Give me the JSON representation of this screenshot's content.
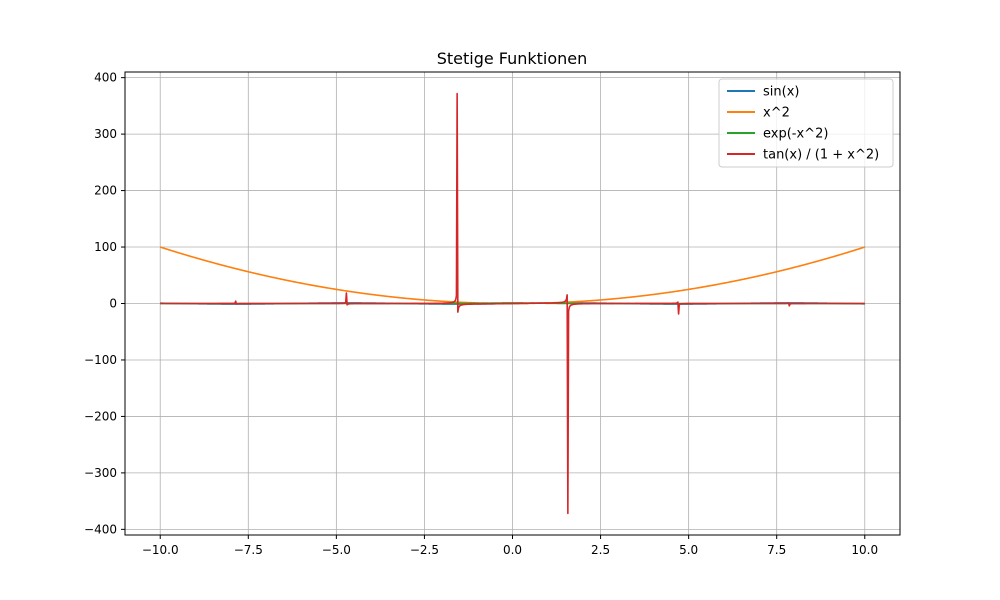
{
  "chart_data": {
    "type": "line",
    "title": "Stetige Funktionen",
    "xlabel": "",
    "ylabel": "",
    "xlim": [
      -11,
      11
    ],
    "ylim": [
      -410,
      410
    ],
    "grid": true,
    "legend_position": "top-right",
    "x_ticks": [
      -10,
      -7.5,
      -5,
      -2.5,
      0,
      2.5,
      5,
      7.5,
      10
    ],
    "x_tick_labels": [
      "−10.0",
      "−7.5",
      "−5.0",
      "−2.5",
      "0.0",
      "2.5",
      "5.0",
      "7.5",
      "10.0"
    ],
    "y_ticks": [
      -400,
      -300,
      -200,
      -100,
      0,
      100,
      200,
      300,
      400
    ],
    "y_tick_labels": [
      "−400",
      "−300",
      "−200",
      "−100",
      "0",
      "100",
      "200",
      "300",
      "400"
    ],
    "x_range": [
      -10,
      10
    ],
    "series": [
      {
        "name": "sin(x)",
        "function": "sin(x)",
        "color": "#1f77b4"
      },
      {
        "name": "x^2",
        "function": "x^2",
        "color": "#ff7f0e"
      },
      {
        "name": "exp(-x^2)",
        "function": "exp(-x^2)",
        "color": "#2ca02c"
      },
      {
        "name": "tan(x) / (1 + x^2)",
        "function": "tan(x)/(1+x^2)",
        "color": "#d62728"
      }
    ]
  }
}
